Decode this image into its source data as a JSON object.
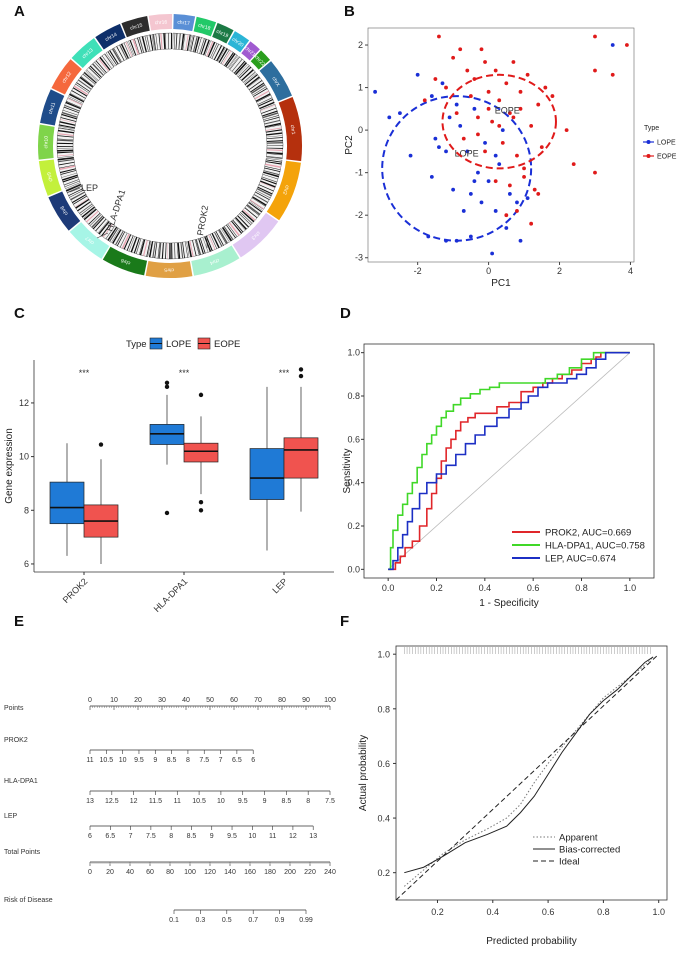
{
  "figure": {
    "labels": {
      "a": "A",
      "b": "B",
      "c": "C",
      "d": "D",
      "e": "E",
      "f": "F"
    }
  },
  "panel_a": {
    "chromosomes": [
      "chr1",
      "chr2",
      "chr3",
      "chr4",
      "chr5",
      "chr6",
      "chr7",
      "chr8",
      "chr9",
      "chr10",
      "chr11",
      "chr12",
      "chr13",
      "chr14",
      "chr15",
      "chr16",
      "chr17",
      "chr18",
      "chr19",
      "chr20",
      "chr21",
      "chr22",
      "chrX"
    ],
    "chr_colors": [
      "#b5300d",
      "#f4a30a",
      "#e0c7f2",
      "#a8f0cf",
      "#e0a044",
      "#1a7a1a",
      "#a6f5e6",
      "#1d3a78",
      "#c3f03b",
      "#7fd44a",
      "#1f4c8a",
      "#f5683d",
      "#3fe0b8",
      "#0e2f6a",
      "#2d2d2d",
      "#f4c6d0",
      "#5a8fd6",
      "#22c968",
      "#1c7a45",
      "#2bb5d6",
      "#a05bd0",
      "#2a9e1d",
      "#2d6e9e"
    ],
    "genes": [
      "LEP",
      "HLA-DPA1",
      "PROK2"
    ]
  },
  "chart_data": [
    {
      "id": "B",
      "type": "scatter",
      "xlabel": "PC1",
      "ylabel": "PC2",
      "xticks": [
        -2,
        0,
        2,
        4
      ],
      "yticks": [
        -3,
        -2,
        -1,
        0,
        1,
        2
      ],
      "xlim": [
        -3.4,
        4.1
      ],
      "ylim": [
        -3.1,
        2.4
      ],
      "legend_title": "Type",
      "series": [
        {
          "name": "LOPE",
          "color": "#1a2fd6",
          "ellipse_label": "LOPE",
          "ellipse": {
            "cx": -0.9,
            "cy": -0.9,
            "rx": 2.1,
            "ry": 1.7
          },
          "points": [
            [
              -3.2,
              0.9
            ],
            [
              -2.8,
              0.3
            ],
            [
              -2.0,
              1.3
            ],
            [
              -1.6,
              0.8
            ],
            [
              -1.5,
              -0.2
            ],
            [
              -1.4,
              -0.4
            ],
            [
              -1.3,
              1.1
            ],
            [
              -1.2,
              -0.5
            ],
            [
              -1.1,
              0.3
            ],
            [
              -1.0,
              -1.4
            ],
            [
              -0.9,
              -2.6
            ],
            [
              -0.8,
              0.1
            ],
            [
              -0.7,
              -1.9
            ],
            [
              -0.6,
              -0.5
            ],
            [
              -0.5,
              -1.5
            ],
            [
              -0.5,
              -2.5
            ],
            [
              -0.4,
              0.5
            ],
            [
              -0.3,
              -1.0
            ],
            [
              -0.2,
              -1.7
            ],
            [
              -0.1,
              -0.3
            ],
            [
              0.0,
              -1.2
            ],
            [
              0.1,
              -2.9
            ],
            [
              0.2,
              -1.9
            ],
            [
              0.3,
              -0.8
            ],
            [
              0.4,
              0.0
            ],
            [
              0.5,
              -2.3
            ],
            [
              0.6,
              -1.5
            ],
            [
              -1.7,
              -2.5
            ],
            [
              -1.2,
              -2.6
            ],
            [
              -2.5,
              0.4
            ],
            [
              0.8,
              -1.7
            ],
            [
              3.5,
              2.0
            ],
            [
              1.1,
              -1.6
            ],
            [
              -0.4,
              -1.2
            ],
            [
              0.9,
              -2.6
            ],
            [
              0.2,
              -0.6
            ],
            [
              -1.6,
              -1.1
            ],
            [
              -0.9,
              0.6
            ],
            [
              -2.2,
              -0.6
            ]
          ]
        },
        {
          "name": "EOPE",
          "color": "#e01a1a",
          "ellipse_label": "EOPE",
          "ellipse": {
            "cx": 0.3,
            "cy": 0.2,
            "rx": 1.6,
            "ry": 1.1
          },
          "points": [
            [
              -1.8,
              0.7
            ],
            [
              -1.5,
              1.2
            ],
            [
              -1.4,
              2.2
            ],
            [
              -1.2,
              1.0
            ],
            [
              -1.0,
              1.7
            ],
            [
              -0.9,
              0.4
            ],
            [
              -0.8,
              1.9
            ],
            [
              -0.7,
              -0.2
            ],
            [
              -0.6,
              1.4
            ],
            [
              -0.5,
              0.8
            ],
            [
              -0.4,
              1.2
            ],
            [
              -0.3,
              0.3
            ],
            [
              -0.2,
              1.9
            ],
            [
              -0.1,
              1.6
            ],
            [
              0.0,
              0.9
            ],
            [
              0.1,
              0.2
            ],
            [
              0.2,
              1.4
            ],
            [
              0.3,
              0.7
            ],
            [
              0.4,
              -0.3
            ],
            [
              0.5,
              1.1
            ],
            [
              0.6,
              0.4
            ],
            [
              0.7,
              1.6
            ],
            [
              0.8,
              -0.6
            ],
            [
              0.9,
              0.9
            ],
            [
              1.0,
              -0.9
            ],
            [
              1.1,
              1.3
            ],
            [
              1.2,
              0.1
            ],
            [
              1.3,
              -1.4
            ],
            [
              1.4,
              0.6
            ],
            [
              1.5,
              -0.4
            ],
            [
              1.6,
              1.0
            ],
            [
              1.8,
              0.8
            ],
            [
              2.2,
              0.0
            ],
            [
              2.4,
              -0.8
            ],
            [
              3.0,
              1.4
            ],
            [
              3.0,
              -1.0
            ],
            [
              3.0,
              2.2
            ],
            [
              3.5,
              1.3
            ],
            [
              3.9,
              2.0
            ],
            [
              0.5,
              -2.0
            ],
            [
              0.8,
              -1.9
            ],
            [
              1.2,
              -2.2
            ],
            [
              1.0,
              -1.1
            ],
            [
              0.2,
              -1.2
            ],
            [
              -0.1,
              -0.5
            ],
            [
              0.6,
              -1.3
            ],
            [
              1.4,
              -1.5
            ],
            [
              0.3,
              0.1
            ],
            [
              0.0,
              0.5
            ],
            [
              -0.3,
              -0.1
            ],
            [
              0.7,
              0.3
            ],
            [
              0.9,
              0.5
            ]
          ]
        }
      ]
    },
    {
      "id": "C",
      "type": "box",
      "ylabel": "Gene expression",
      "yticks": [
        6,
        8,
        10,
        12
      ],
      "ylim": [
        5.7,
        13.6
      ],
      "legend_title": "Type",
      "categories": [
        "PROK2",
        "HLA-DPA1",
        "LEP"
      ],
      "significance": [
        "***",
        "***",
        "***"
      ],
      "series": [
        {
          "name": "LOPE",
          "color": "#1f7ad6",
          "boxes": [
            {
              "min": 6.3,
              "q1": 7.5,
              "median": 8.1,
              "q3": 9.05,
              "max": 10.5,
              "outliers": []
            },
            {
              "min": 9.7,
              "q1": 10.45,
              "median": 10.85,
              "q3": 11.2,
              "max": 12.3,
              "outliers": [
                12.6,
                12.75,
                7.9
              ]
            },
            {
              "min": 6.5,
              "q1": 8.4,
              "median": 9.2,
              "q3": 10.3,
              "max": 12.6,
              "outliers": []
            }
          ]
        },
        {
          "name": "EOPE",
          "color": "#f0534f",
          "boxes": [
            {
              "min": 6.0,
              "q1": 7.0,
              "median": 7.6,
              "q3": 8.2,
              "max": 9.9,
              "outliers": [
                10.45
              ]
            },
            {
              "min": 8.6,
              "q1": 9.8,
              "median": 10.2,
              "q3": 10.5,
              "max": 11.5,
              "outliers": [
                12.3,
                8.3,
                8.0
              ]
            },
            {
              "min": 7.95,
              "q1": 9.2,
              "median": 10.25,
              "q3": 10.7,
              "max": 12.6,
              "outliers": [
                13.0,
                13.25
              ]
            }
          ]
        }
      ]
    },
    {
      "id": "D",
      "type": "line",
      "xlabel": "1 - Specificity",
      "ylabel": "Sensitivity",
      "xticks": [
        0.0,
        0.2,
        0.4,
        0.6,
        0.8,
        1.0
      ],
      "yticks": [
        0.0,
        0.2,
        0.4,
        0.6,
        0.8,
        1.0
      ],
      "xlim": [
        -0.1,
        1.1
      ],
      "ylim": [
        -0.04,
        1.04
      ],
      "series": [
        {
          "name": "PROK2",
          "label": "PROK2, AUC=0.669",
          "auc": 0.669,
          "color": "#e0262a",
          "x": [
            0,
            0.03,
            0.05,
            0.07,
            0.1,
            0.13,
            0.16,
            0.18,
            0.2,
            0.22,
            0.24,
            0.26,
            0.28,
            0.3,
            0.33,
            0.36,
            0.4,
            0.45,
            0.5,
            0.55,
            0.6,
            0.64,
            0.68,
            0.72,
            0.76,
            0.8,
            0.84,
            0.86,
            0.88,
            1.0
          ],
          "y": [
            0,
            0.03,
            0.06,
            0.1,
            0.13,
            0.2,
            0.28,
            0.35,
            0.42,
            0.5,
            0.56,
            0.6,
            0.64,
            0.68,
            0.7,
            0.72,
            0.72,
            0.75,
            0.77,
            0.82,
            0.84,
            0.86,
            0.88,
            0.9,
            0.92,
            0.95,
            0.97,
            0.98,
            1.0,
            1.0
          ]
        },
        {
          "name": "HLA-DPA1",
          "label": "HLA-DPA1, AUC=0.758",
          "auc": 0.758,
          "color": "#40d828",
          "x": [
            0,
            0.01,
            0.02,
            0.04,
            0.06,
            0.08,
            0.1,
            0.12,
            0.14,
            0.16,
            0.18,
            0.2,
            0.22,
            0.24,
            0.27,
            0.3,
            0.34,
            0.38,
            0.42,
            0.46,
            0.5,
            0.55,
            0.6,
            0.65,
            0.7,
            0.75,
            0.8,
            0.85,
            1.0
          ],
          "y": [
            0,
            0.1,
            0.18,
            0.25,
            0.3,
            0.35,
            0.4,
            0.47,
            0.53,
            0.58,
            0.62,
            0.66,
            0.7,
            0.73,
            0.76,
            0.79,
            0.81,
            0.83,
            0.84,
            0.86,
            0.86,
            0.86,
            0.86,
            0.88,
            0.9,
            0.93,
            0.97,
            1.0,
            1.0
          ]
        },
        {
          "name": "LEP",
          "label": "LEP, AUC=0.674",
          "auc": 0.674,
          "color": "#1c2fc4",
          "x": [
            0,
            0.02,
            0.04,
            0.06,
            0.08,
            0.1,
            0.13,
            0.16,
            0.2,
            0.24,
            0.28,
            0.32,
            0.36,
            0.4,
            0.45,
            0.5,
            0.55,
            0.58,
            0.62,
            0.66,
            0.7,
            0.74,
            0.78,
            0.82,
            0.86,
            0.9,
            1.0
          ],
          "y": [
            0,
            0.04,
            0.1,
            0.16,
            0.22,
            0.28,
            0.35,
            0.4,
            0.44,
            0.48,
            0.53,
            0.58,
            0.62,
            0.66,
            0.7,
            0.74,
            0.77,
            0.8,
            0.84,
            0.86,
            0.86,
            0.88,
            0.9,
            0.93,
            0.97,
            1.0,
            1.0
          ]
        }
      ]
    },
    {
      "id": "E",
      "type": "nomogram",
      "rows": [
        {
          "label": "Points",
          "ticks": [
            "0",
            "10",
            "20",
            "30",
            "40",
            "50",
            "60",
            "70",
            "80",
            "90",
            "100"
          ],
          "start": 0,
          "end": 1
        },
        {
          "label": "PROK2",
          "ticks": [
            "11",
            "10.5",
            "10",
            "9.5",
            "9",
            "8.5",
            "8",
            "7.5",
            "7",
            "6.5",
            "6"
          ],
          "start": 0,
          "end": 0.68
        },
        {
          "label": "HLA-DPA1",
          "ticks": [
            "13",
            "12.5",
            "12",
            "11.5",
            "11",
            "10.5",
            "10",
            "9.5",
            "9",
            "8.5",
            "8",
            "7.5"
          ],
          "start": 0,
          "end": 1
        },
        {
          "label": "LEP",
          "ticks": [
            "6",
            "6.5",
            "7",
            "7.5",
            "8",
            "8.5",
            "9",
            "9.5",
            "10",
            "11",
            "12",
            "13"
          ],
          "start": 0,
          "end": 0.93
        },
        {
          "label": "Total Points",
          "ticks": [
            "0",
            "20",
            "40",
            "60",
            "80",
            "100",
            "120",
            "140",
            "160",
            "180",
            "200",
            "220",
            "240"
          ],
          "start": 0,
          "end": 1
        },
        {
          "label": "Risk of Disease",
          "ticks": [
            "0.1",
            "0.3",
            "0.5",
            "0.7",
            "0.9",
            "0.99"
          ],
          "start": 0.35,
          "end": 0.9
        }
      ]
    },
    {
      "id": "F",
      "type": "line",
      "xlabel": "Predicted probability",
      "ylabel": "Actual probability",
      "xticks": [
        0.2,
        0.4,
        0.6,
        0.8,
        1.0
      ],
      "yticks": [
        0.2,
        0.4,
        0.6,
        0.8,
        1.0
      ],
      "xlim": [
        0.05,
        1.03
      ],
      "ylim": [
        0.1,
        1.03
      ],
      "series": [
        {
          "name": "Apparent",
          "style": "dotted",
          "x": [
            0.08,
            0.15,
            0.22,
            0.3,
            0.38,
            0.45,
            0.5,
            0.55,
            0.6,
            0.65,
            0.7,
            0.75,
            0.8,
            0.85,
            0.9,
            0.95,
            0.98
          ],
          "y": [
            0.15,
            0.21,
            0.27,
            0.32,
            0.36,
            0.4,
            0.45,
            0.53,
            0.6,
            0.66,
            0.72,
            0.78,
            0.84,
            0.88,
            0.92,
            0.96,
            0.99
          ]
        },
        {
          "name": "Bias-corrected",
          "style": "solid",
          "x": [
            0.08,
            0.15,
            0.22,
            0.3,
            0.38,
            0.45,
            0.5,
            0.55,
            0.6,
            0.65,
            0.7,
            0.75,
            0.8,
            0.85,
            0.9,
            0.95,
            0.98
          ],
          "y": [
            0.2,
            0.22,
            0.26,
            0.31,
            0.34,
            0.37,
            0.42,
            0.48,
            0.56,
            0.64,
            0.71,
            0.78,
            0.83,
            0.87,
            0.92,
            0.97,
            0.99
          ]
        },
        {
          "name": "Ideal",
          "style": "dashed",
          "x": [
            0.05,
            1.0
          ],
          "y": [
            0.05,
            1.0
          ]
        }
      ]
    }
  ]
}
